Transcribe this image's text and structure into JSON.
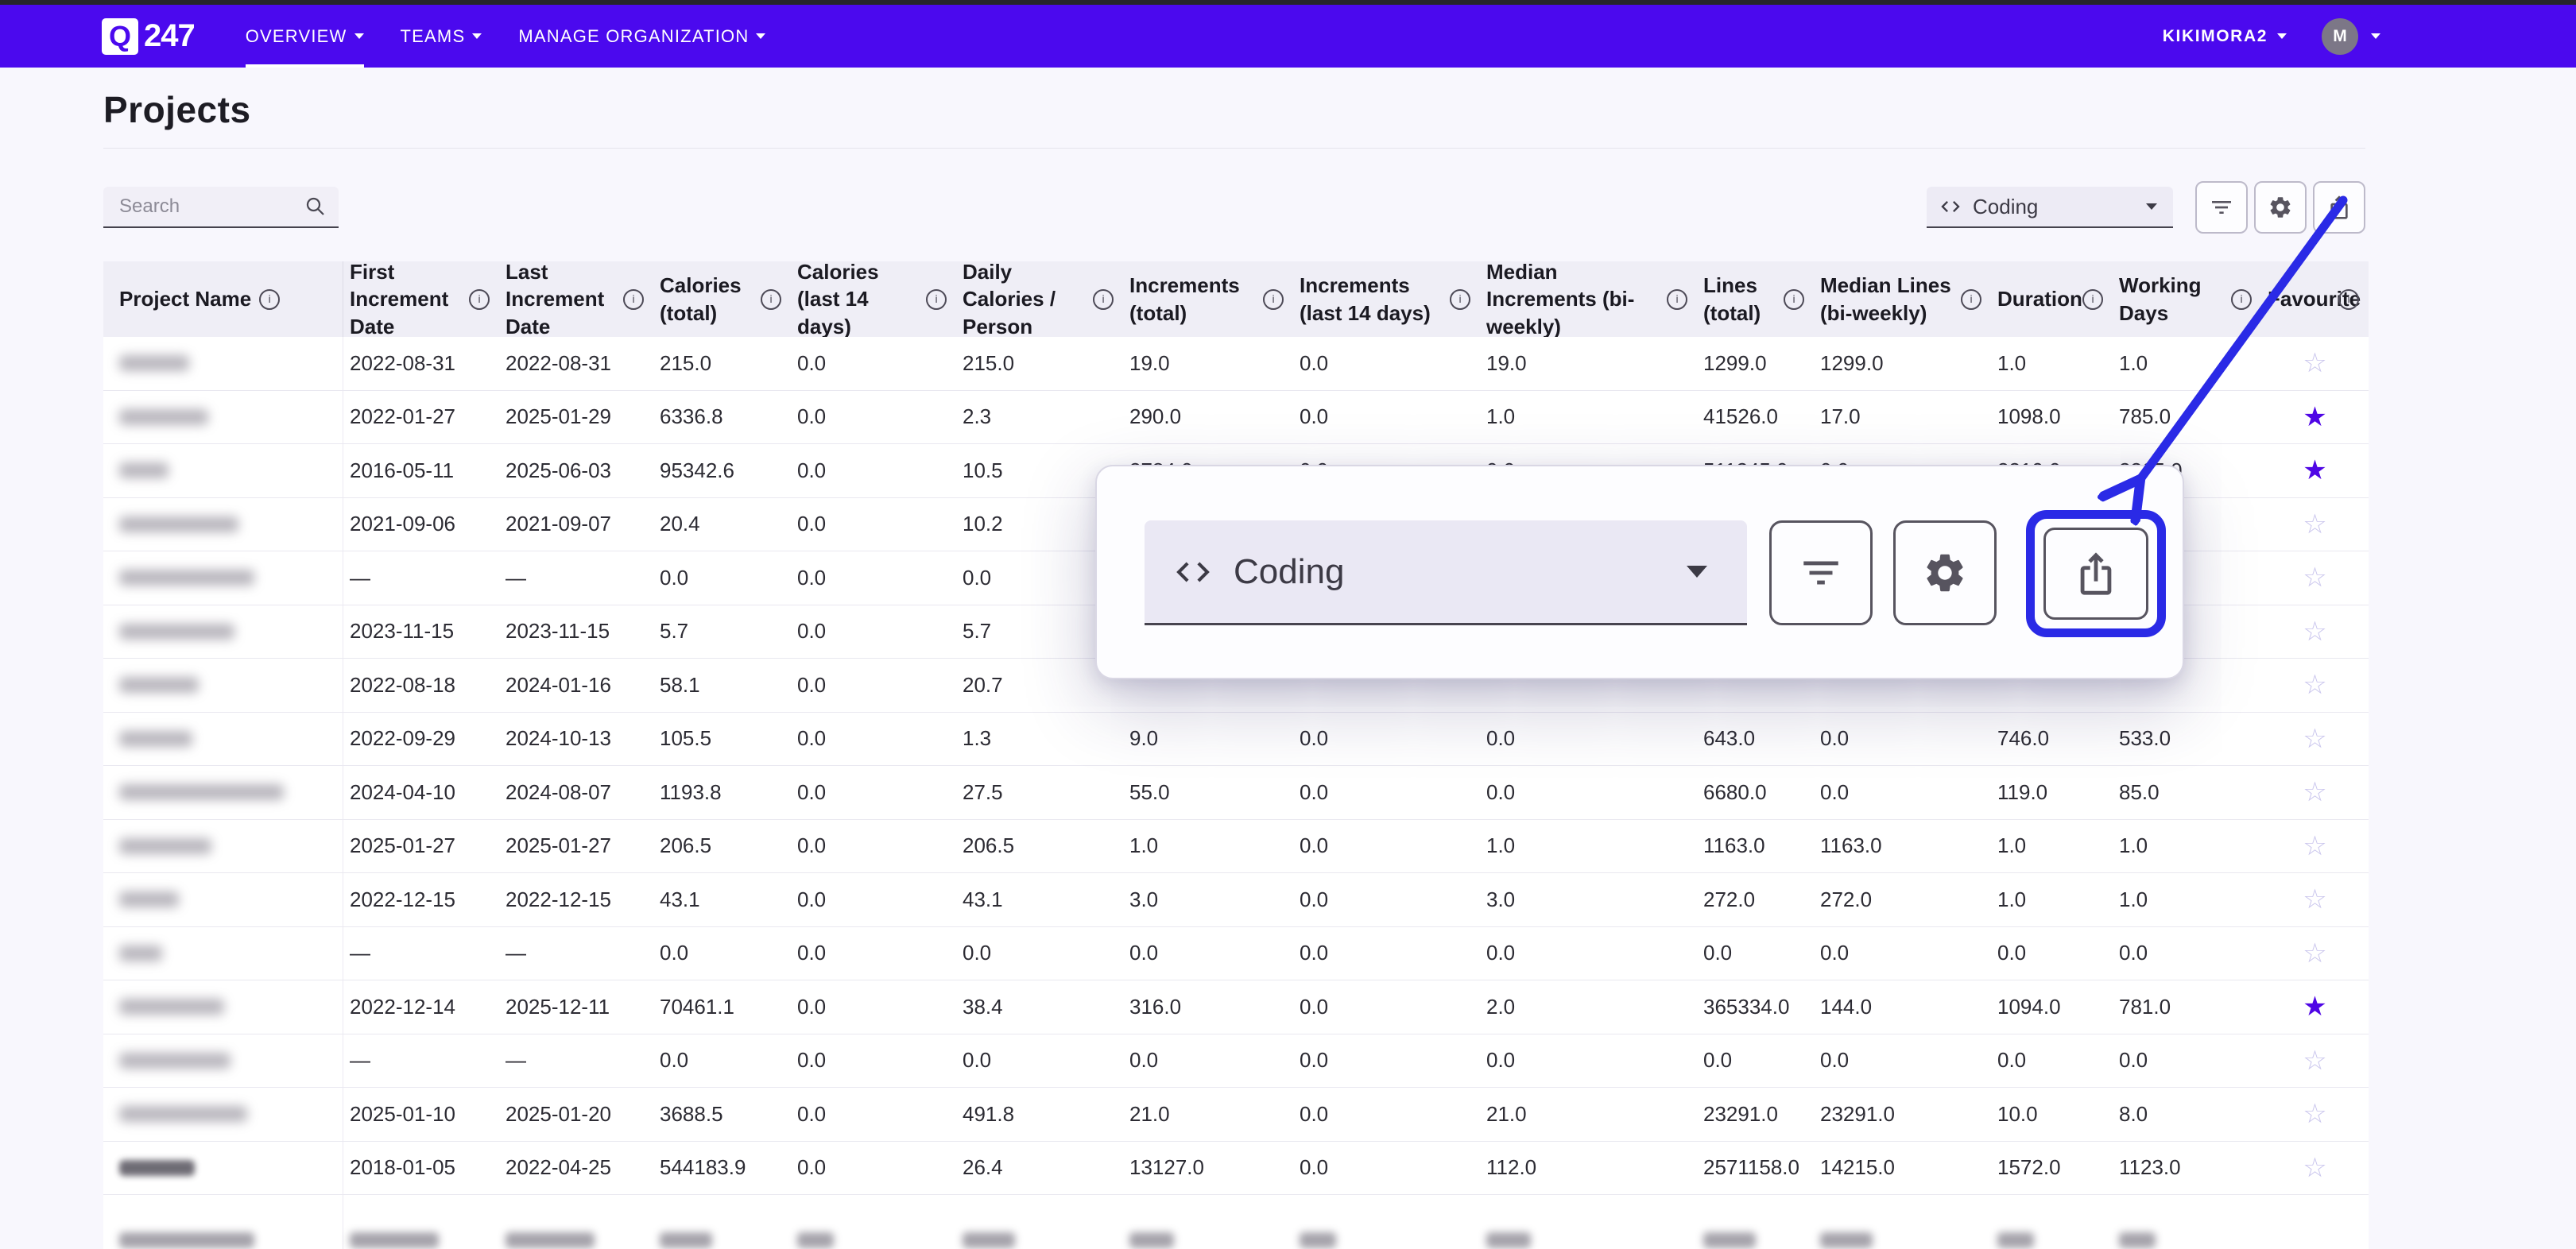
{
  "nav": {
    "logo_q": "Q",
    "logo_number": "247",
    "items": [
      {
        "id": "overview",
        "label": "OVERVIEW",
        "active": true,
        "caret": false
      },
      {
        "id": "teams",
        "label": "TEAMS",
        "active": false,
        "caret": false
      },
      {
        "id": "manage-organization",
        "label": "MANAGE ORGANIZATION",
        "active": false,
        "caret": true
      }
    ],
    "org_label": "KIKIMORA2",
    "avatar_letter": "M"
  },
  "page": {
    "title": "Projects"
  },
  "toolbar": {
    "search_placeholder": "Search",
    "search_value": "",
    "dataset_value": "Coding",
    "buttons": [
      {
        "id": "filter",
        "icon": "filter-icon"
      },
      {
        "id": "settings",
        "icon": "gear-icon"
      },
      {
        "id": "export",
        "icon": "share-icon"
      }
    ]
  },
  "popup": {
    "dataset_value": "Coding",
    "buttons": [
      {
        "id": "filter",
        "icon": "filter-icon"
      },
      {
        "id": "settings",
        "icon": "gear-icon"
      },
      {
        "id": "export",
        "icon": "share-icon"
      }
    ],
    "highlighted_button": "export"
  },
  "icons": {
    "star_filled_glyph": "★",
    "star_outline_glyph": "☆"
  },
  "colors": {
    "navbar": "#4b09ee",
    "accent_blue": "#2a2ae6",
    "favourite_filled": "#4f06e5",
    "favourite_outline": "#c9c5ed"
  },
  "table": {
    "columns": [
      {
        "label": "Project Name",
        "info": false
      },
      {
        "label": "First Increment Date",
        "info": false
      },
      {
        "label": "Last Increment Date",
        "info": false
      },
      {
        "label": "Calories (total)",
        "info": true
      },
      {
        "label": "Calories (last 14 days)",
        "info": true
      },
      {
        "label": "Daily Calories / Person",
        "info": true
      },
      {
        "label": "Increments (total)",
        "info": true
      },
      {
        "label": "Increments (last 14 days)",
        "info": true
      },
      {
        "label": "Median Increments (bi-weekly)",
        "info": true
      },
      {
        "label": "Lines (total)",
        "info": true
      },
      {
        "label": "Median Lines (bi-weekly)",
        "info": true
      },
      {
        "label": "Duration",
        "info": true
      },
      {
        "label": "Working Days",
        "info": true
      },
      {
        "label": "Favourite",
        "info": true
      }
    ],
    "rows": [
      {
        "name_redacted": true,
        "name_blur_width": 88,
        "cells": [
          "2022-08-31",
          "2022-08-31",
          "215.0",
          "0.0",
          "215.0",
          "19.0",
          "0.0",
          "19.0",
          "1299.0",
          "1299.0",
          "1.0",
          "1.0"
        ],
        "favourite": false
      },
      {
        "name_redacted": true,
        "name_blur_width": 112,
        "cells": [
          "2022-01-27",
          "2025-01-29",
          "6336.8",
          "0.0",
          "2.3",
          "290.0",
          "0.0",
          "1.0",
          "41526.0",
          "17.0",
          "1098.0",
          "785.0"
        ],
        "favourite": true
      },
      {
        "name_redacted": true,
        "name_blur_width": 62,
        "cells": [
          "2016-05-11",
          "2025-06-03",
          "95342.6",
          "0.0",
          "10.5",
          "3784.0",
          "0.0",
          "0.0",
          "511245.0",
          "0.0",
          "3310.0",
          "2365.0"
        ],
        "favourite": true
      },
      {
        "name_redacted": true,
        "name_blur_width": 150,
        "cells": [
          "2021-09-06",
          "2021-09-07",
          "20.4",
          "0.0",
          "10.2",
          null,
          null,
          null,
          null,
          null,
          null,
          null
        ],
        "favourite": false
      },
      {
        "name_redacted": true,
        "name_blur_width": 170,
        "cells": [
          "—",
          "—",
          "0.0",
          "0.0",
          "0.0",
          null,
          null,
          null,
          null,
          null,
          null,
          null
        ],
        "favourite": false
      },
      {
        "name_redacted": true,
        "name_blur_width": 145,
        "cells": [
          "2023-11-15",
          "2023-11-15",
          "5.7",
          "0.0",
          "5.7",
          null,
          null,
          null,
          null,
          null,
          null,
          null
        ],
        "favourite": false
      },
      {
        "name_redacted": true,
        "name_blur_width": 100,
        "cells": [
          "2022-08-18",
          "2024-01-16",
          "58.1",
          "0.0",
          "20.7",
          null,
          null,
          null,
          null,
          null,
          null,
          null
        ],
        "favourite": false
      },
      {
        "name_redacted": true,
        "name_blur_width": 92,
        "cells": [
          "2022-09-29",
          "2024-10-13",
          "105.5",
          "0.0",
          "1.3",
          "9.0",
          "0.0",
          "0.0",
          "643.0",
          "0.0",
          "746.0",
          "533.0"
        ],
        "favourite": false
      },
      {
        "name_redacted": true,
        "name_blur_width": 207,
        "cells": [
          "2024-04-10",
          "2024-08-07",
          "1193.8",
          "0.0",
          "27.5",
          "55.0",
          "0.0",
          "0.0",
          "6680.0",
          "0.0",
          "119.0",
          "85.0"
        ],
        "favourite": false
      },
      {
        "name_redacted": true,
        "name_blur_width": 116,
        "cells": [
          "2025-01-27",
          "2025-01-27",
          "206.5",
          "0.0",
          "206.5",
          "1.0",
          "0.0",
          "1.0",
          "1163.0",
          "1163.0",
          "1.0",
          "1.0"
        ],
        "favourite": false
      },
      {
        "name_redacted": true,
        "name_blur_width": 75,
        "cells": [
          "2022-12-15",
          "2022-12-15",
          "43.1",
          "0.0",
          "43.1",
          "3.0",
          "0.0",
          "3.0",
          "272.0",
          "272.0",
          "1.0",
          "1.0"
        ],
        "favourite": false
      },
      {
        "name_redacted": true,
        "name_blur_width": 54,
        "cells": [
          "—",
          "—",
          "0.0",
          "0.0",
          "0.0",
          "0.0",
          "0.0",
          "0.0",
          "0.0",
          "0.0",
          "0.0",
          "0.0"
        ],
        "favourite": false
      },
      {
        "name_redacted": true,
        "name_blur_width": 132,
        "cells": [
          "2022-12-14",
          "2025-12-11",
          "70461.1",
          "0.0",
          "38.4",
          "316.0",
          "0.0",
          "2.0",
          "365334.0",
          "144.0",
          "1094.0",
          "781.0"
        ],
        "favourite": true
      },
      {
        "name_redacted": true,
        "name_blur_width": 140,
        "cells": [
          "—",
          "—",
          "0.0",
          "0.0",
          "0.0",
          "0.0",
          "0.0",
          "0.0",
          "0.0",
          "0.0",
          "0.0",
          "0.0"
        ],
        "favourite": false
      },
      {
        "name_redacted": true,
        "name_blur_width": 161,
        "cells": [
          "2025-01-10",
          "2025-01-20",
          "3688.5",
          "0.0",
          "491.8",
          "21.0",
          "0.0",
          "21.0",
          "23291.0",
          "23291.0",
          "10.0",
          "8.0"
        ],
        "favourite": false
      },
      {
        "name_redacted": true,
        "name_blur_width": 95,
        "name_dark": true,
        "cells": [
          "2018-01-05",
          "2022-04-25",
          "544183.9",
          "0.0",
          "26.4",
          "13127.0",
          "0.0",
          "112.0",
          "2571158.0",
          "14215.0",
          "1572.0",
          "1123.0"
        ],
        "favourite": false
      }
    ],
    "partial_row": {
      "visible": true,
      "tip_widths": [
        170,
        112,
        112,
        66,
        46,
        66,
        56,
        46,
        56,
        66,
        66,
        46,
        46,
        0
      ]
    }
  }
}
